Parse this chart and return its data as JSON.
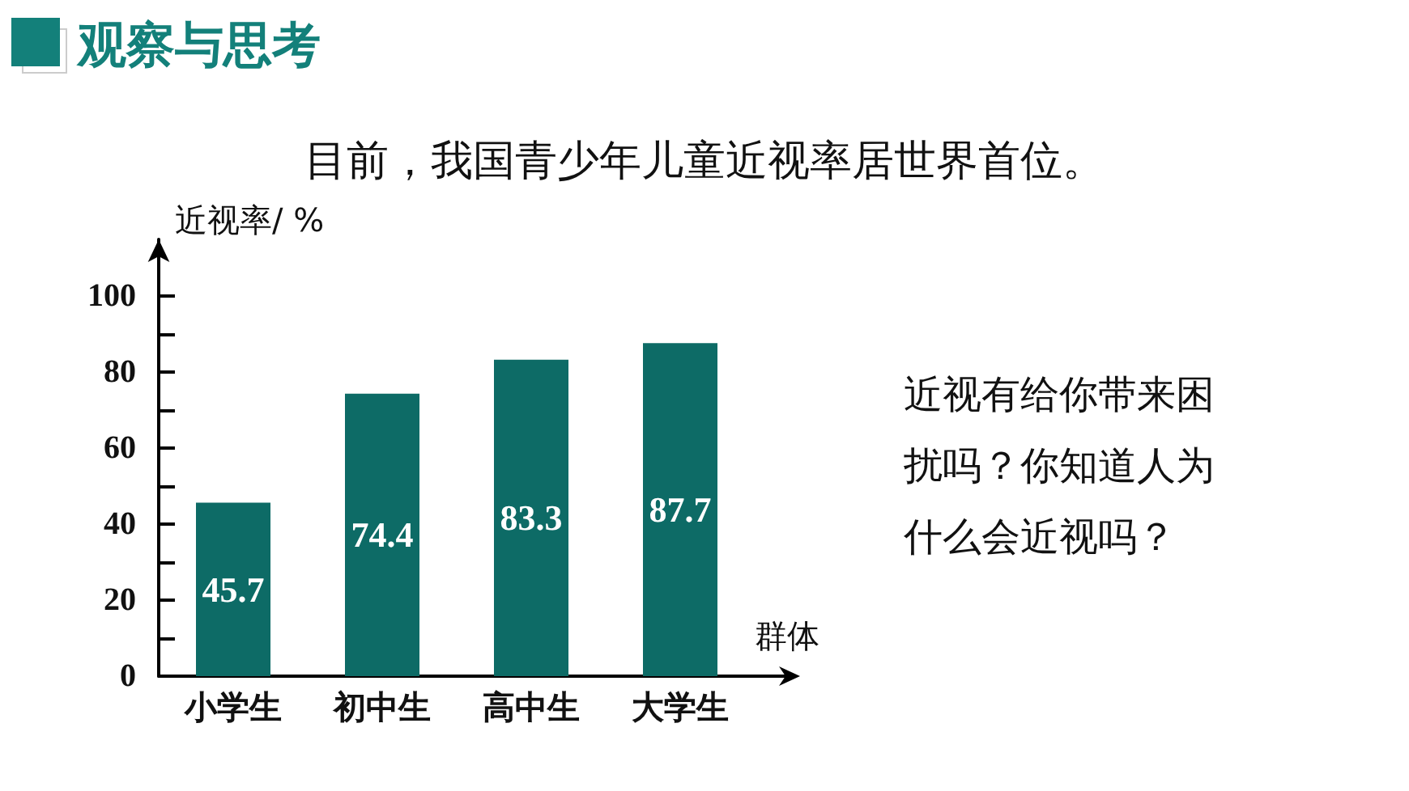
{
  "chart_data": {
    "type": "bar",
    "title": "观察与思考",
    "subtitle": "目前，我国青少年儿童近视率居世界首位。",
    "xlabel": "群体",
    "ylabel": "近视率/ %",
    "categories": [
      "小学生",
      "初中生",
      "高中生",
      "大学生"
    ],
    "values": [
      45.7,
      74.4,
      83.3,
      87.7
    ],
    "color": "#0d6b66",
    "data_labels": true,
    "ylim": [
      0,
      115
    ],
    "yticks": [
      0,
      {
        "value": 10,
        "label": null
      },
      20,
      {
        "value": 30,
        "label": null
      },
      40,
      {
        "value": 50,
        "label": null
      },
      60,
      {
        "value": 70,
        "label": null
      },
      80,
      {
        "value": 90,
        "label": null
      },
      100
    ],
    "grid": false,
    "annotations": [
      "近视有给你带来困扰吗？你知道人为什么会近视吗？"
    ]
  }
}
